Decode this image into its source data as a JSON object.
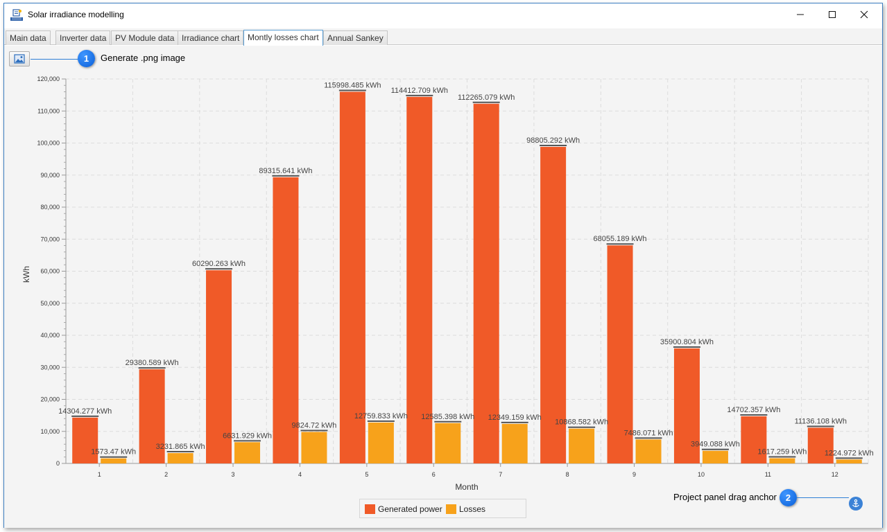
{
  "window": {
    "title": "Solar irradiance modelling",
    "icon": "solar-panel-icon"
  },
  "tabs": [
    {
      "label": "Main data",
      "active": false
    },
    {
      "label": "Inverter data",
      "active": false
    },
    {
      "label": "PV Module data",
      "active": false
    },
    {
      "label": "Irradiance chart",
      "active": false
    },
    {
      "label": "Montly losses chart",
      "active": true
    },
    {
      "label": "Annual Sankey",
      "active": false
    }
  ],
  "toolbar": {
    "png_button_icon": "image-icon"
  },
  "callouts": {
    "c1": {
      "number": "1",
      "text": "Generate .png image"
    },
    "c2": {
      "number": "2",
      "text": "Project panel drag anchor"
    }
  },
  "colors": {
    "generated": "#f05a28",
    "losses": "#f7a21b",
    "callout": "#1a6fe6"
  },
  "chart_data": {
    "type": "bar",
    "xlabel": "Month",
    "ylabel": "kWh",
    "ylim": [
      0,
      120000
    ],
    "yticks": [
      0,
      10000,
      20000,
      30000,
      40000,
      50000,
      60000,
      70000,
      80000,
      90000,
      100000,
      110000,
      120000
    ],
    "ytick_labels": [
      "0",
      "10,000",
      "20,000",
      "30,000",
      "40,000",
      "50,000",
      "60,000",
      "70,000",
      "80,000",
      "90,000",
      "100,000",
      "110,000",
      "120,000"
    ],
    "grid": true,
    "legend_position": "bottom",
    "categories": [
      "1",
      "2",
      "3",
      "4",
      "5",
      "6",
      "7",
      "8",
      "9",
      "10",
      "11",
      "12"
    ],
    "series": [
      {
        "name": "Generated power",
        "values": [
          14304.277,
          29380.589,
          60290.263,
          89315.641,
          115998.485,
          114412.709,
          112265.079,
          98805.292,
          68055.189,
          35900.804,
          14702.357,
          11136.108
        ],
        "labels": [
          "14304.277 kWh",
          "29380.589 kWh",
          "60290.263 kWh",
          "89315.641 kWh",
          "115998.485 kWh",
          "114412.709 kWh",
          "112265.079 kWh",
          "98805.292 kWh",
          "68055.189 kWh",
          "35900.804 kWh",
          "14702.357 kWh",
          "11136.108 kWh"
        ]
      },
      {
        "name": "Losses",
        "values": [
          1573.47,
          3231.865,
          6631.929,
          9824.72,
          12759.833,
          12585.398,
          12349.159,
          10868.582,
          7486.071,
          3949.088,
          1617.259,
          1224.972
        ],
        "labels": [
          "1573.47 kWh",
          "3231.865 kWh",
          "6631.929 kWh",
          "9824.72 kWh",
          "12759.833 kWh",
          "12585.398 kWh",
          "12349.159 kWh",
          "10868.582 kWh",
          "7486.071 kWh",
          "3949.088 kWh",
          "1617.259 kWh",
          "1224.972 kWh"
        ]
      }
    ]
  },
  "anchor": {
    "icon": "anchor-icon"
  }
}
